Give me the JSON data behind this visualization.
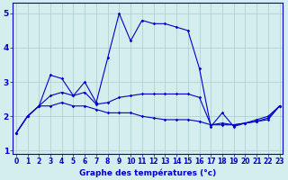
{
  "title": "Graphe des températures (°c)",
  "bg_color": "#d4eeed",
  "line_color": "#0000cc",
  "grid_color": "#aacccc",
  "x_ticks": [
    0,
    1,
    2,
    3,
    4,
    5,
    6,
    7,
    8,
    9,
    10,
    11,
    12,
    13,
    14,
    15,
    16,
    17,
    18,
    19,
    20,
    21,
    22,
    23
  ],
  "y_ticks": [
    1,
    2,
    3,
    4,
    5
  ],
  "ylim": [
    0.9,
    5.3
  ],
  "xlim": [
    -0.3,
    23.3
  ],
  "series1": {
    "x": [
      0,
      1,
      2,
      3,
      4,
      5,
      6,
      7,
      8,
      9,
      10,
      11,
      12,
      13,
      14,
      15,
      16,
      17,
      18,
      19,
      20,
      21,
      22,
      23
    ],
    "y": [
      1.5,
      2.0,
      2.3,
      3.2,
      3.1,
      2.6,
      3.0,
      2.4,
      3.7,
      5.0,
      4.2,
      4.8,
      4.7,
      4.7,
      4.6,
      4.5,
      3.4,
      1.7,
      2.1,
      1.7,
      1.8,
      1.9,
      2.0,
      2.3
    ]
  },
  "series2": {
    "x": [
      0,
      1,
      2,
      3,
      4,
      5,
      6,
      7,
      8,
      9,
      10,
      11,
      12,
      13,
      14,
      15,
      16,
      17,
      18,
      19,
      20,
      21,
      22,
      23
    ],
    "y": [
      1.5,
      2.0,
      2.3,
      2.6,
      2.7,
      2.6,
      2.7,
      2.35,
      2.4,
      2.55,
      2.6,
      2.65,
      2.65,
      2.65,
      2.65,
      2.65,
      2.55,
      1.75,
      1.8,
      1.75,
      1.8,
      1.85,
      1.95,
      2.3
    ]
  },
  "series3": {
    "x": [
      0,
      1,
      2,
      3,
      4,
      5,
      6,
      7,
      8,
      9,
      10,
      11,
      12,
      13,
      14,
      15,
      16,
      17,
      18,
      19,
      20,
      21,
      22,
      23
    ],
    "y": [
      1.5,
      2.0,
      2.3,
      2.3,
      2.4,
      2.3,
      2.3,
      2.2,
      2.1,
      2.1,
      2.1,
      2.0,
      1.95,
      1.9,
      1.9,
      1.9,
      1.85,
      1.75,
      1.75,
      1.75,
      1.8,
      1.85,
      1.9,
      2.3
    ]
  },
  "tick_fontsize": 5.5,
  "xlabel_fontsize": 6.5,
  "marker_size": 1.8,
  "linewidth": 0.8
}
